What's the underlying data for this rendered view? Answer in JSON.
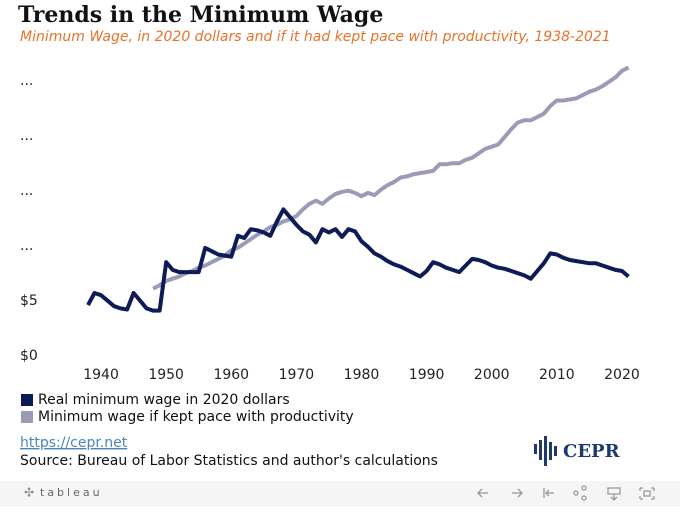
{
  "title": "Trends in the Minimum Wage",
  "subtitle": "Minimum Wage, in 2020 dollars and if it had kept pace with productivity, 1938-2021",
  "chart_data": {
    "type": "line",
    "x": [
      1938,
      1939,
      1940,
      1941,
      1942,
      1943,
      1944,
      1945,
      1946,
      1947,
      1948,
      1949,
      1950,
      1951,
      1952,
      1953,
      1954,
      1955,
      1956,
      1957,
      1958,
      1959,
      1960,
      1961,
      1962,
      1963,
      1964,
      1965,
      1966,
      1967,
      1968,
      1969,
      1970,
      1971,
      1972,
      1973,
      1974,
      1975,
      1976,
      1977,
      1978,
      1979,
      1980,
      1981,
      1982,
      1983,
      1984,
      1985,
      1986,
      1987,
      1988,
      1989,
      1990,
      1991,
      1992,
      1993,
      1994,
      1995,
      1996,
      1997,
      1998,
      1999,
      2000,
      2001,
      2002,
      2003,
      2004,
      2005,
      2006,
      2007,
      2008,
      2009,
      2010,
      2011,
      2012,
      2013,
      2014,
      2015,
      2016,
      2017,
      2018,
      2019,
      2020,
      2021
    ],
    "series": [
      {
        "name": "Real minimum wage in 2020 dollars",
        "color": "#0d1b56",
        "values": [
          4.9,
          6.0,
          5.8,
          5.3,
          4.8,
          4.6,
          4.5,
          6.0,
          5.3,
          4.6,
          4.4,
          4.4,
          8.8,
          8.1,
          7.9,
          7.9,
          7.9,
          7.9,
          10.1,
          9.8,
          9.5,
          9.4,
          9.3,
          11.2,
          11.0,
          11.8,
          11.7,
          11.5,
          11.2,
          12.5,
          13.6,
          12.9,
          12.2,
          11.6,
          11.3,
          10.6,
          11.8,
          11.5,
          11.8,
          11.1,
          11.8,
          11.6,
          10.7,
          10.2,
          9.6,
          9.3,
          8.9,
          8.6,
          8.4,
          8.1,
          7.8,
          7.5,
          8.0,
          8.8,
          8.6,
          8.3,
          8.1,
          7.9,
          8.5,
          9.1,
          9.0,
          8.8,
          8.5,
          8.3,
          8.2,
          8.0,
          7.8,
          7.6,
          7.3,
          8.0,
          8.7,
          9.6,
          9.5,
          9.2,
          9.0,
          8.9,
          8.8,
          8.7,
          8.7,
          8.5,
          8.3,
          8.1,
          8.0,
          7.5
        ]
      },
      {
        "name": "Minimum wage if kept pace with productivity",
        "color": "#9a9bb8",
        "values": [
          null,
          null,
          null,
          null,
          null,
          null,
          null,
          null,
          null,
          null,
          6.4,
          6.7,
          7.1,
          7.3,
          7.5,
          7.8,
          8.0,
          8.3,
          8.5,
          8.8,
          9.1,
          9.4,
          9.9,
          10.1,
          10.5,
          10.9,
          11.3,
          11.6,
          12.0,
          12.2,
          12.5,
          12.7,
          13.0,
          13.6,
          14.1,
          14.4,
          14.1,
          14.6,
          15.0,
          15.2,
          15.3,
          15.1,
          14.8,
          15.1,
          14.9,
          15.4,
          15.8,
          16.1,
          16.5,
          16.6,
          16.8,
          16.9,
          17.0,
          17.1,
          17.7,
          17.7,
          17.8,
          17.8,
          18.1,
          18.3,
          18.7,
          19.1,
          19.3,
          19.5,
          20.2,
          20.9,
          21.5,
          21.7,
          21.7,
          22.0,
          22.3,
          23.0,
          23.5,
          23.5,
          23.6,
          23.7,
          24.0,
          24.3,
          24.5,
          24.8,
          25.2,
          25.6,
          26.2,
          26.5
        ]
      }
    ],
    "xlim": [
      1936,
      2024
    ],
    "xticks": [
      1940,
      1950,
      1960,
      1970,
      1980,
      1990,
      2000,
      2010,
      2020
    ],
    "ylim": [
      0,
      27.5
    ],
    "yticks": [
      {
        "value": 0,
        "label": "$0"
      },
      {
        "value": 5,
        "label": "$5"
      },
      {
        "value": 10,
        "label": "..."
      },
      {
        "value": 15,
        "label": "..."
      },
      {
        "value": 20,
        "label": "..."
      },
      {
        "value": 25,
        "label": "..."
      }
    ],
    "grid": false
  },
  "link": "https://cepr.net",
  "source": "Source: Bureau of Labor Statistics and author's calculations",
  "logo": "CEPR",
  "toolbar": "tableau"
}
